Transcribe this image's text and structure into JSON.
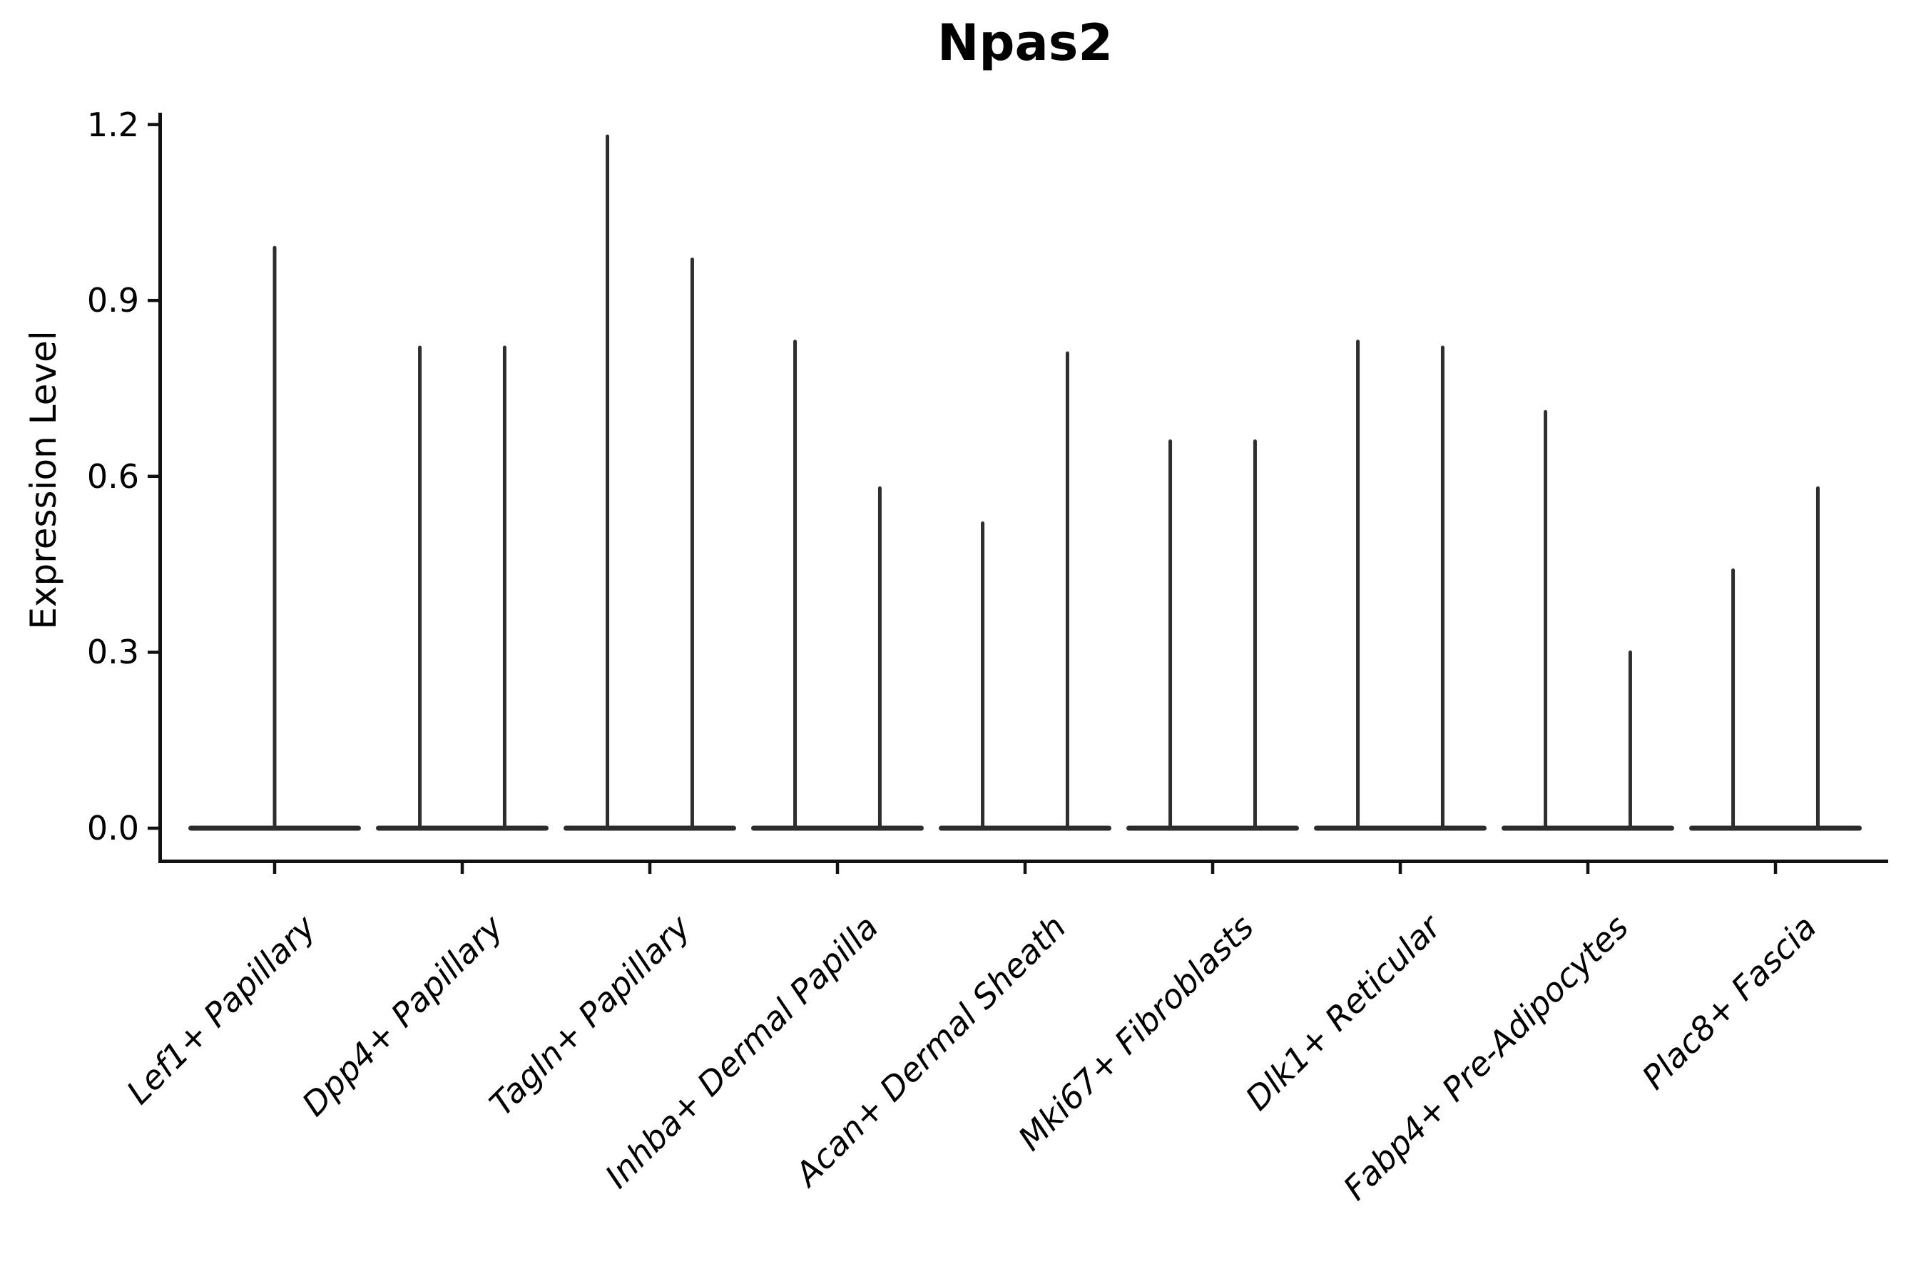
{
  "title": "Npas2",
  "ylabel": "Expression Level",
  "colors": {
    "violin_line": "#2e2e2e",
    "violin_body": "#2b2b2b",
    "spine": "#111111",
    "text": "#000000",
    "background": "#ffffff"
  },
  "chart_data": {
    "type": "violin",
    "title": "Npas2",
    "xlabel": "",
    "ylabel": "Expression Level",
    "ylim": [
      -0.054,
      1.225
    ],
    "yticks": [
      0.0,
      0.3,
      0.6,
      0.9,
      1.2
    ],
    "ytick_labels": [
      "0.0",
      "0.3",
      "0.6",
      "0.9",
      "1.2"
    ],
    "grid": false,
    "legend_position": "none",
    "categories": [
      "Lef1+ Papillary",
      "Dpp4+ Papillary",
      "Tagln+ Papillary",
      "Inhba+ Dermal Papilla",
      "Acan+ Dermal Sheath",
      "Mki67+ Fibroblasts",
      "Dlk1+ Reticular",
      "Fabp4+ Pre-Adipocytes",
      "Plac8+ Fascia"
    ],
    "description": "Very thin violin plots of gene expression; each category shows a flat body at 0 plus thin vertical density spikes reaching the maximum expression value.",
    "violins": [
      {
        "category": "Lef1+ Papillary",
        "spikes": [
          {
            "offset": 0.0,
            "max": 0.99
          }
        ]
      },
      {
        "category": "Dpp4+ Papillary",
        "spikes": [
          {
            "offset": -0.226,
            "max": 0.82
          },
          {
            "offset": 0.226,
            "max": 0.82
          }
        ]
      },
      {
        "category": "Tagln+ Papillary",
        "spikes": [
          {
            "offset": -0.226,
            "max": 1.18
          },
          {
            "offset": 0.226,
            "max": 0.97
          }
        ]
      },
      {
        "category": "Inhba+ Dermal Papilla",
        "spikes": [
          {
            "offset": -0.226,
            "max": 0.83
          },
          {
            "offset": 0.226,
            "max": 0.58
          }
        ]
      },
      {
        "category": "Acan+ Dermal Sheath",
        "spikes": [
          {
            "offset": -0.226,
            "max": 0.52
          },
          {
            "offset": 0.226,
            "max": 0.81
          }
        ]
      },
      {
        "category": "Mki67+ Fibroblasts",
        "spikes": [
          {
            "offset": -0.226,
            "max": 0.66
          },
          {
            "offset": 0.226,
            "max": 0.66
          }
        ]
      },
      {
        "category": "Dlk1+ Reticular",
        "spikes": [
          {
            "offset": -0.226,
            "max": 0.83
          },
          {
            "offset": 0.226,
            "max": 0.82
          }
        ]
      },
      {
        "category": "Fabp4+ Pre-Adipocytes",
        "spikes": [
          {
            "offset": -0.226,
            "max": 0.71
          },
          {
            "offset": 0.226,
            "max": 0.3
          }
        ]
      },
      {
        "category": "Plac8+ Fascia",
        "spikes": [
          {
            "offset": -0.226,
            "max": 0.44
          },
          {
            "offset": 0.226,
            "max": 0.58
          }
        ]
      }
    ],
    "body_halfwidth": 0.46,
    "body_value": 0.0
  }
}
